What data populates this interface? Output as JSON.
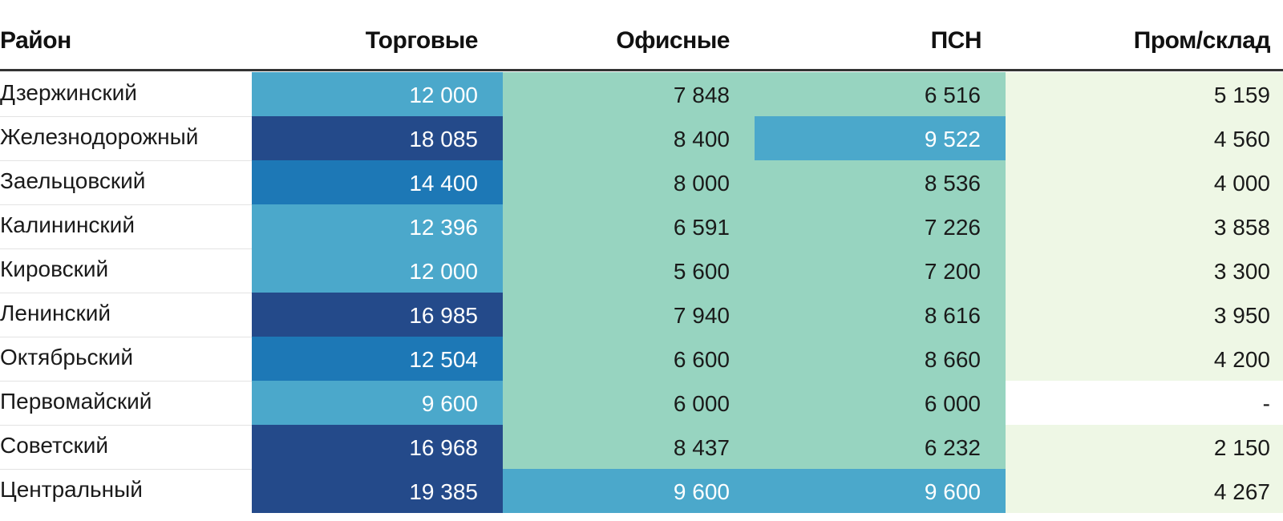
{
  "chart_data": {
    "type": "heatmap",
    "columns": [
      "Район",
      "Торговые",
      "Офисные",
      "ПСН",
      "Пром/склад"
    ],
    "rows": [
      {
        "district": "Дзержинский",
        "values": [
          12000,
          7848,
          6516,
          5159
        ],
        "labels": [
          "12 000",
          "7 848",
          "6 516",
          "5 159"
        ],
        "colors": [
          "#4ba8cb",
          "#97d4c0",
          "#97d4c0",
          "#eef7e5"
        ]
      },
      {
        "district": "Железнодорожный",
        "values": [
          18085,
          8400,
          9522,
          4560
        ],
        "labels": [
          "18 085",
          "8 400",
          "9 522",
          "4 560"
        ],
        "colors": [
          "#244a8a",
          "#97d4c0",
          "#4ba8cb",
          "#eef7e5"
        ]
      },
      {
        "district": "Заельцовский",
        "values": [
          14400,
          8000,
          8536,
          4000
        ],
        "labels": [
          "14 400",
          "8 000",
          "8 536",
          "4 000"
        ],
        "colors": [
          "#1d78b6",
          "#97d4c0",
          "#97d4c0",
          "#eef7e5"
        ]
      },
      {
        "district": "Калининский",
        "values": [
          12396,
          6591,
          7226,
          3858
        ],
        "labels": [
          "12 396",
          "6 591",
          "7 226",
          "3 858"
        ],
        "colors": [
          "#4ba8cb",
          "#97d4c0",
          "#97d4c0",
          "#eef7e5"
        ]
      },
      {
        "district": "Кировский",
        "values": [
          12000,
          5600,
          7200,
          3300
        ],
        "labels": [
          "12 000",
          "5 600",
          "7 200",
          "3 300"
        ],
        "colors": [
          "#4ba8cb",
          "#97d4c0",
          "#97d4c0",
          "#eef7e5"
        ]
      },
      {
        "district": "Ленинский",
        "values": [
          16985,
          7940,
          8616,
          3950
        ],
        "labels": [
          "16 985",
          "7 940",
          "8 616",
          "3 950"
        ],
        "colors": [
          "#244a8a",
          "#97d4c0",
          "#97d4c0",
          "#eef7e5"
        ]
      },
      {
        "district": "Октябрьский",
        "values": [
          12504,
          6600,
          8660,
          4200
        ],
        "labels": [
          "12 504",
          "6 600",
          "8 660",
          "4 200"
        ],
        "colors": [
          "#1d78b6",
          "#97d4c0",
          "#97d4c0",
          "#eef7e5"
        ]
      },
      {
        "district": "Первомайский",
        "values": [
          9600,
          6000,
          6000,
          null
        ],
        "labels": [
          "9 600",
          "6 000",
          "6 000",
          "-"
        ],
        "colors": [
          "#4ba8cb",
          "#97d4c0",
          "#97d4c0",
          "#ffffff"
        ]
      },
      {
        "district": "Советский",
        "values": [
          16968,
          8437,
          6232,
          2150
        ],
        "labels": [
          "16 968",
          "8 437",
          "6 232",
          "2 150"
        ],
        "colors": [
          "#244a8a",
          "#97d4c0",
          "#97d4c0",
          "#eef7e5"
        ]
      },
      {
        "district": "Центральный",
        "values": [
          19385,
          9600,
          9600,
          4267
        ],
        "labels": [
          "19 385",
          "9 600",
          "9 600",
          "4 267"
        ],
        "colors": [
          "#244a8a",
          "#4ba8cb",
          "#4ba8cb",
          "#eef7e5"
        ]
      }
    ],
    "palette": {
      "darkest": "#244a8a",
      "dark": "#1d78b6",
      "mid": "#4ba8cb",
      "light": "#97d4c0",
      "lightest": "#eef7e5",
      "empty": "#ffffff"
    }
  }
}
